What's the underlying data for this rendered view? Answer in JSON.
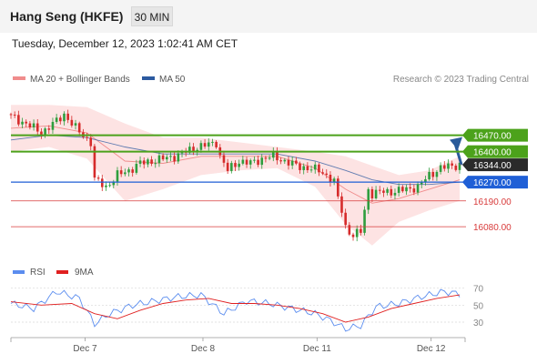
{
  "header": {
    "title": "Hang Seng (HKFE)",
    "timeframe": "30 MIN"
  },
  "datetime": "Tuesday, December 12, 2023 1:02:41 AM CET",
  "legend": {
    "ma20_label": "MA 20 + Bollinger Bands",
    "ma50_label": "MA 50",
    "copyright": "Research © 2023 Trading Central",
    "rsi_label": "RSI",
    "rsi_ma_label": "9MA"
  },
  "colors": {
    "candle_up": "#2e9e3e",
    "candle_down": "#d62b2b",
    "bollinger_fill": "#fde3e3",
    "ma20": "#f08c8c",
    "ma50": "#2c5aa0",
    "resistance": "#4ca21b",
    "support_blue": "#1f5fd6",
    "support_red": "#d83a3a",
    "last_price_bg": "#2a2a2a",
    "rsi_line": "#5b8def",
    "rsi_ma_line": "#e02020",
    "arrow": "#2a5b9a"
  },
  "chart_data": [
    {
      "type": "candlestick",
      "title": "Hang Seng (HKFE) 30 MIN",
      "x_ticks": [
        "Dec 7",
        "Dec 8",
        "Dec 11",
        "Dec 12"
      ],
      "levels": [
        {
          "label": "16470.00",
          "value": 16470,
          "kind": "resistance"
        },
        {
          "label": "16400.00",
          "value": 16400,
          "kind": "resistance"
        },
        {
          "label": "16344.00",
          "value": 16344,
          "kind": "last"
        },
        {
          "label": "16270.00",
          "value": 16270,
          "kind": "pivot"
        },
        {
          "label": "16190.00",
          "value": 16190,
          "kind": "support"
        },
        {
          "label": "16080.00",
          "value": 16080,
          "kind": "support"
        }
      ],
      "close_path": [
        [
          0,
          16550
        ],
        [
          4,
          16520
        ],
        [
          8,
          16480
        ],
        [
          12,
          16530
        ],
        [
          14,
          16560
        ],
        [
          17,
          16500
        ],
        [
          19,
          16470
        ],
        [
          21,
          16440
        ],
        [
          22,
          16280
        ],
        [
          25,
          16250
        ],
        [
          28,
          16300
        ],
        [
          31,
          16320
        ],
        [
          34,
          16350
        ],
        [
          37,
          16360
        ],
        [
          40,
          16370
        ],
        [
          43,
          16380
        ],
        [
          46,
          16400
        ],
        [
          49,
          16420
        ],
        [
          52,
          16430
        ],
        [
          54,
          16440
        ],
        [
          55,
          16380
        ],
        [
          57,
          16320
        ],
        [
          60,
          16360
        ],
        [
          63,
          16350
        ],
        [
          66,
          16370
        ],
        [
          69,
          16380
        ],
        [
          72,
          16360
        ],
        [
          75,
          16340
        ],
        [
          78,
          16330
        ],
        [
          81,
          16320
        ],
        [
          83,
          16300
        ],
        [
          85,
          16270
        ],
        [
          86,
          16200
        ],
        [
          87,
          16150
        ],
        [
          88,
          16080
        ],
        [
          90,
          16040
        ],
        [
          92,
          16060
        ],
        [
          93,
          16150
        ],
        [
          94,
          16240
        ],
        [
          95,
          16220
        ],
        [
          98,
          16230
        ],
        [
          101,
          16230
        ],
        [
          104,
          16240
        ],
        [
          107,
          16250
        ],
        [
          110,
          16300
        ],
        [
          113,
          16330
        ],
        [
          116,
          16340
        ],
        [
          118,
          16344
        ]
      ],
      "indicators": {
        "ma20_path": [
          [
            0,
            16500
          ],
          [
            10,
            16510
          ],
          [
            20,
            16480
          ],
          [
            30,
            16360
          ],
          [
            40,
            16350
          ],
          [
            50,
            16380
          ],
          [
            60,
            16380
          ],
          [
            70,
            16380
          ],
          [
            80,
            16330
          ],
          [
            88,
            16240
          ],
          [
            95,
            16180
          ],
          [
            102,
            16200
          ],
          [
            110,
            16240
          ],
          [
            118,
            16280
          ]
        ],
        "bb_upper_path": [
          [
            0,
            16600
          ],
          [
            10,
            16600
          ],
          [
            20,
            16590
          ],
          [
            30,
            16520
          ],
          [
            40,
            16460
          ],
          [
            50,
            16460
          ],
          [
            60,
            16440
          ],
          [
            70,
            16420
          ],
          [
            80,
            16400
          ],
          [
            88,
            16380
          ],
          [
            95,
            16340
          ],
          [
            102,
            16300
          ],
          [
            110,
            16320
          ],
          [
            118,
            16380
          ]
        ],
        "bb_lower_path": [
          [
            0,
            16400
          ],
          [
            10,
            16420
          ],
          [
            20,
            16370
          ],
          [
            30,
            16190
          ],
          [
            40,
            16240
          ],
          [
            50,
            16300
          ],
          [
            60,
            16320
          ],
          [
            70,
            16330
          ],
          [
            80,
            16250
          ],
          [
            88,
            16090
          ],
          [
            95,
            16000
          ],
          [
            102,
            16100
          ],
          [
            110,
            16150
          ],
          [
            118,
            16190
          ]
        ],
        "ma50_path": [
          [
            0,
            16450
          ],
          [
            10,
            16470
          ],
          [
            20,
            16460
          ],
          [
            30,
            16420
          ],
          [
            40,
            16390
          ],
          [
            50,
            16390
          ],
          [
            60,
            16390
          ],
          [
            70,
            16390
          ],
          [
            80,
            16360
          ],
          [
            88,
            16320
          ],
          [
            95,
            16280
          ],
          [
            102,
            16260
          ],
          [
            110,
            16260
          ],
          [
            118,
            16270
          ]
        ]
      },
      "annotation": "upward arrow from last price toward 16470.00"
    },
    {
      "type": "line",
      "title": "RSI",
      "y_ticks": [
        70,
        50,
        30
      ],
      "ylim": [
        15,
        75
      ],
      "series": [
        {
          "name": "RSI",
          "values": [
            [
              0,
              52
            ],
            [
              6,
              46
            ],
            [
              12,
              66
            ],
            [
              18,
              58
            ],
            [
              22,
              28
            ],
            [
              26,
              40
            ],
            [
              32,
              50
            ],
            [
              38,
              55
            ],
            [
              44,
              60
            ],
            [
              50,
              62
            ],
            [
              56,
              40
            ],
            [
              62,
              55
            ],
            [
              68,
              52
            ],
            [
              74,
              46
            ],
            [
              80,
              40
            ],
            [
              84,
              32
            ],
            [
              88,
              22
            ],
            [
              92,
              26
            ],
            [
              96,
              48
            ],
            [
              102,
              52
            ],
            [
              108,
              60
            ],
            [
              114,
              66
            ],
            [
              118,
              63
            ]
          ]
        },
        {
          "name": "9MA",
          "values": [
            [
              0,
              54
            ],
            [
              8,
              50
            ],
            [
              16,
              52
            ],
            [
              22,
              40
            ],
            [
              28,
              34
            ],
            [
              34,
              44
            ],
            [
              40,
              52
            ],
            [
              46,
              56
            ],
            [
              52,
              58
            ],
            [
              58,
              52
            ],
            [
              64,
              52
            ],
            [
              70,
              50
            ],
            [
              76,
              46
            ],
            [
              82,
              40
            ],
            [
              88,
              30
            ],
            [
              94,
              36
            ],
            [
              100,
              46
            ],
            [
              106,
              52
            ],
            [
              112,
              58
            ],
            [
              118,
              62
            ]
          ]
        }
      ]
    }
  ]
}
